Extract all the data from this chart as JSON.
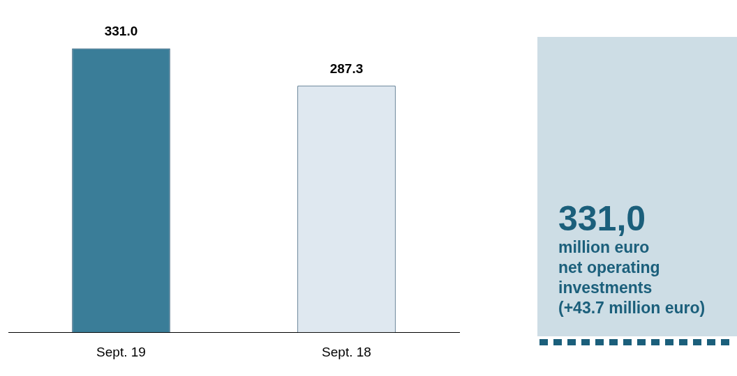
{
  "chart_data": [
    {
      "type": "bar",
      "categories": [
        "Sept. 19",
        "Sept. 18"
      ],
      "values": [
        331.0,
        287.3
      ],
      "colors": [
        "#3a7d98",
        "#dfe8f0"
      ],
      "value_labels": [
        "331.0",
        "287.3"
      ],
      "tick_labels": "x",
      "grid": false,
      "legend": false
    },
    {
      "type": "other",
      "title": "331,0",
      "annotations": [
        "million euro",
        "net operating investments",
        "(+43.7 million euro)"
      ]
    }
  ]
}
